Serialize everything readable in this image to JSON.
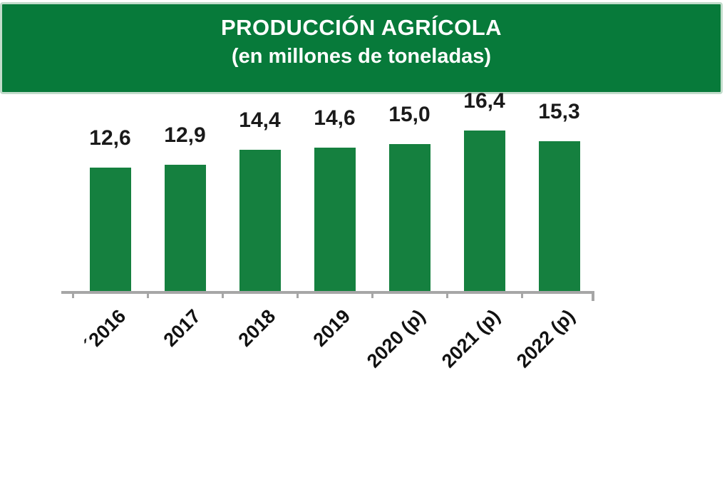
{
  "header": {
    "title_line1": "PRODUCCIÓN AGRÍCOLA",
    "title_line2": "(en millones de toneladas)"
  },
  "colors": {
    "banner_green": "#077a3a",
    "banner_border": "#c2dccb",
    "bar_green": "#15803f",
    "axis_gray": "#a6a6a6",
    "value_label_color": "#1a1a1a",
    "title_text_color": "#ffffff"
  },
  "chart_data": {
    "type": "bar",
    "title": "PRODUCCIÓN AGRÍCOLA",
    "subtitle": "(en millones de toneladas)",
    "categories": [
      "´2016",
      "2017",
      "2018",
      "2019",
      "2020 (p)",
      "2021 (p)",
      "2022 (p)"
    ],
    "values": [
      12.6,
      12.9,
      14.4,
      14.6,
      15.0,
      16.4,
      15.3
    ],
    "value_labels": [
      "12,6",
      "12,9",
      "14,4",
      "14,6",
      "15,0",
      "16,4",
      "15,3"
    ],
    "xlabel": "",
    "ylabel": "",
    "ylim": [
      0,
      17
    ],
    "grid": false,
    "legend": null,
    "bar_color": "#15803f",
    "value_labels_position": "above-bars",
    "x_tick_rotation_deg": 45
  }
}
